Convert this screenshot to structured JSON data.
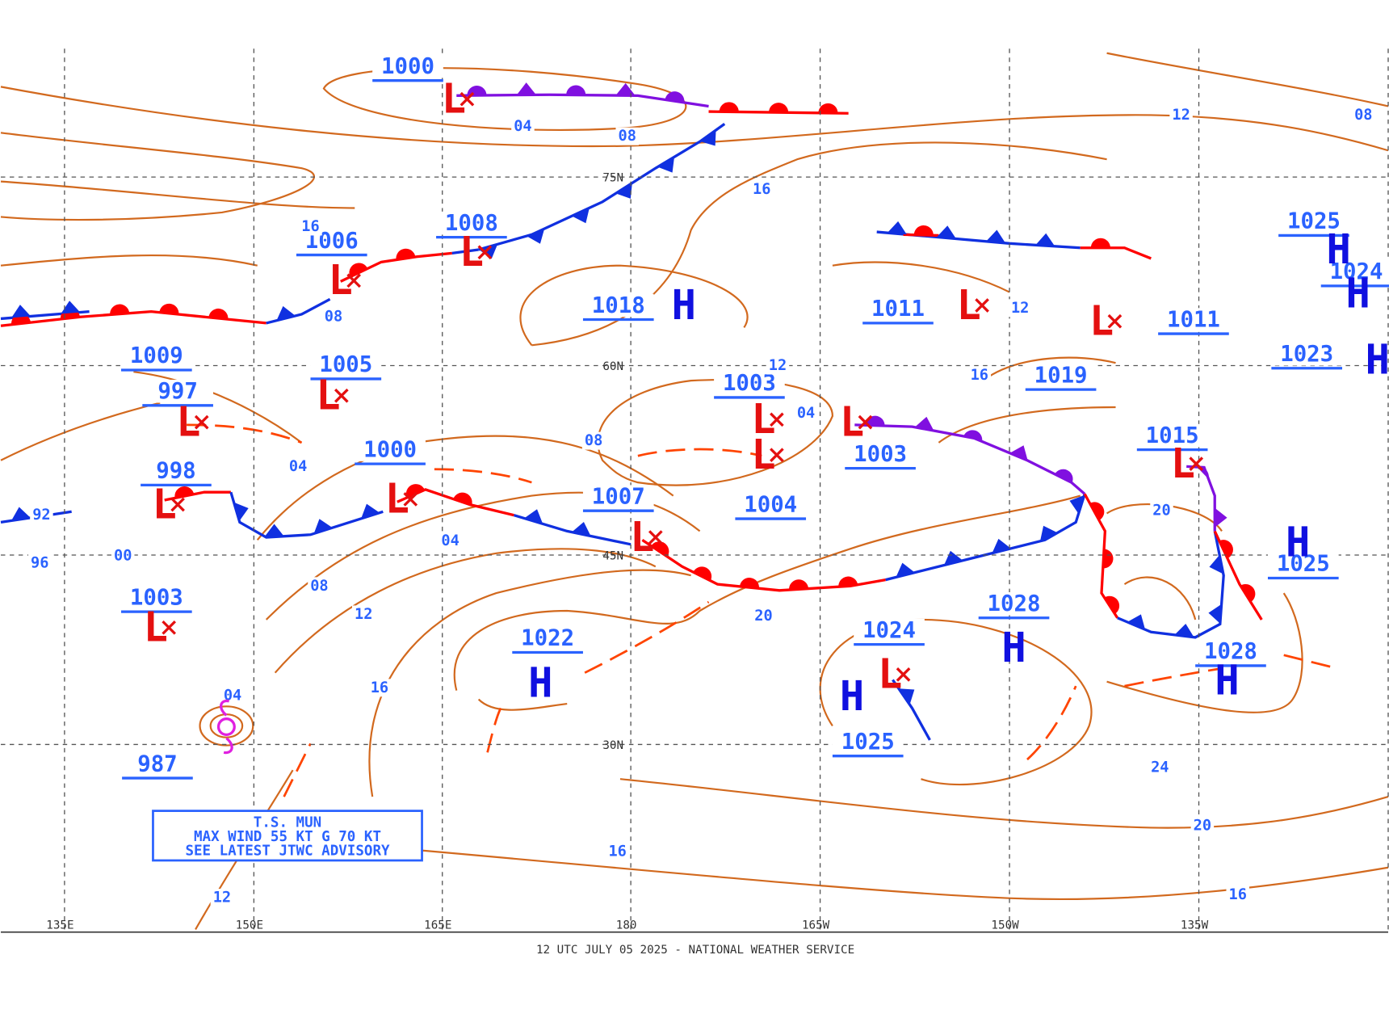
{
  "grid": {
    "longitudes": [
      "135E",
      "150E",
      "165E",
      "180",
      "165W",
      "150W",
      "135W"
    ],
    "latitudes": [
      "75N",
      "60N",
      "45N",
      "30N"
    ]
  },
  "pressure_labels": [
    "1000",
    "1008",
    "1006",
    "1009",
    "1005",
    "997",
    "1000",
    "998",
    "1003",
    "987",
    "1018",
    "1003",
    "1004",
    "1007",
    "1011",
    "1011",
    "1019",
    "1003",
    "1015",
    "1025",
    "1024",
    "1023",
    "1025",
    "1028",
    "1028",
    "1024",
    "1025",
    "1022"
  ],
  "center_symbols": [
    "L",
    "L",
    "L",
    "L",
    "L",
    "L",
    "L",
    "L",
    "H",
    "L",
    "L",
    "L",
    "L",
    "L",
    "L",
    "L",
    "H",
    "H",
    "H",
    "H",
    "H",
    "H",
    "L",
    "H",
    "H"
  ],
  "isobar_labels": [
    "04",
    "08",
    "12",
    "08",
    "16",
    "16",
    "08",
    "12",
    "16",
    "12",
    "04",
    "08",
    "04",
    "04",
    "00",
    "08",
    "12",
    "20",
    "16",
    "04",
    "20",
    "24",
    "20",
    "16",
    "16",
    "12",
    "92",
    "96"
  ],
  "advisory": [
    "T.S. MUN",
    "MAX WIND 55 KT G 70 KT",
    "SEE LATEST JTWC ADVISORY"
  ],
  "footer": "12 UTC JULY 05 2025 - NATIONAL WEATHER SERVICE"
}
